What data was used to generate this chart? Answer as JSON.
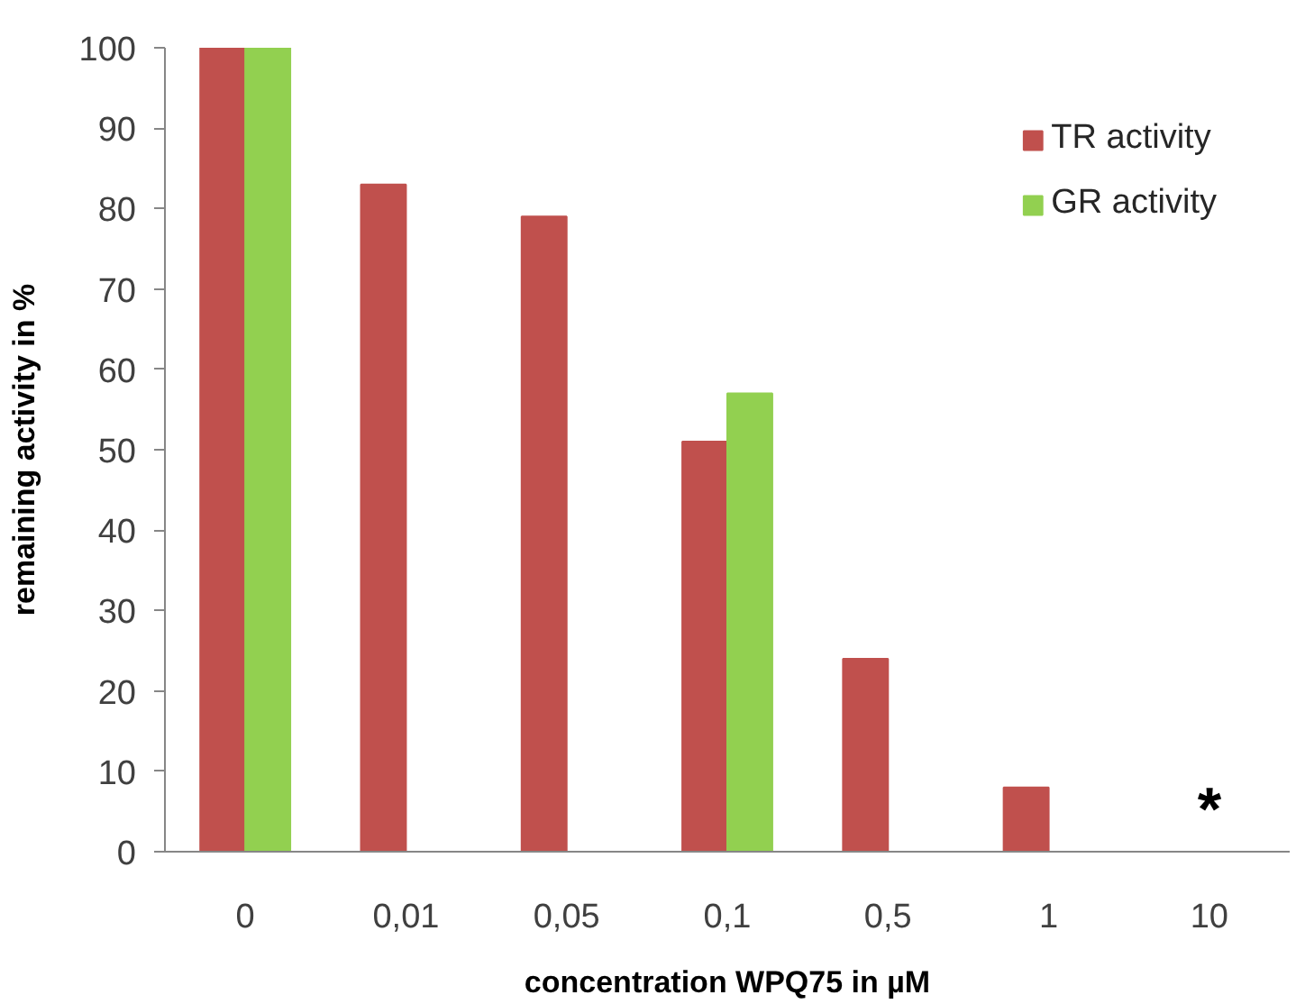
{
  "chart_data": {
    "type": "bar",
    "xlabel": "concentration WPQ75 in µM",
    "ylabel": "remaining activity in %",
    "categories": [
      "0",
      "0,01",
      "0,05",
      "0,1",
      "0,5",
      "1",
      "10"
    ],
    "series": [
      {
        "name": "TR activity",
        "color": "#c0504d",
        "values": [
          100,
          83,
          79,
          51,
          24,
          8,
          null
        ]
      },
      {
        "name": "GR activity",
        "color": "#92d050",
        "values": [
          100,
          null,
          null,
          57,
          null,
          null,
          null
        ]
      }
    ],
    "ylim": [
      0,
      100
    ],
    "yticks": [
      0,
      10,
      20,
      30,
      40,
      50,
      60,
      70,
      80,
      90,
      100
    ],
    "grid": false,
    "legend": "top right",
    "annotations": [
      "*"
    ]
  }
}
